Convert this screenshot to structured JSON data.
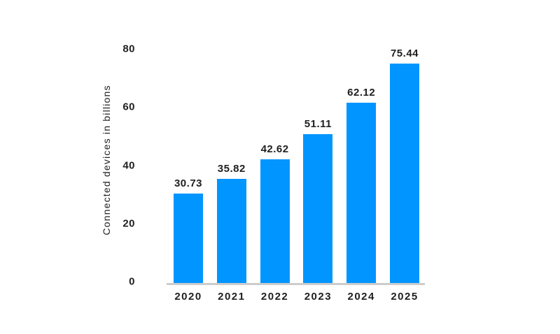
{
  "chart_data": {
    "type": "bar",
    "categories": [
      "2020",
      "2021",
      "2022",
      "2023",
      "2024",
      "2025"
    ],
    "values": [
      30.73,
      35.82,
      42.62,
      51.11,
      62.12,
      75.44
    ],
    "value_labels": [
      "30.73",
      "35.82",
      "42.62",
      "51.11",
      "62.12",
      "75.44"
    ],
    "title": "",
    "xlabel": "",
    "ylabel": "Connected devices in billions",
    "ylim": [
      0,
      80
    ],
    "yticks": [
      0,
      20,
      40,
      60,
      80
    ],
    "grid": false,
    "legend": "none",
    "bar_color": "#0095ff",
    "axis_line_color": "#cccccc",
    "text_color": "#1f1f1f",
    "background_color": "#ffffff"
  }
}
